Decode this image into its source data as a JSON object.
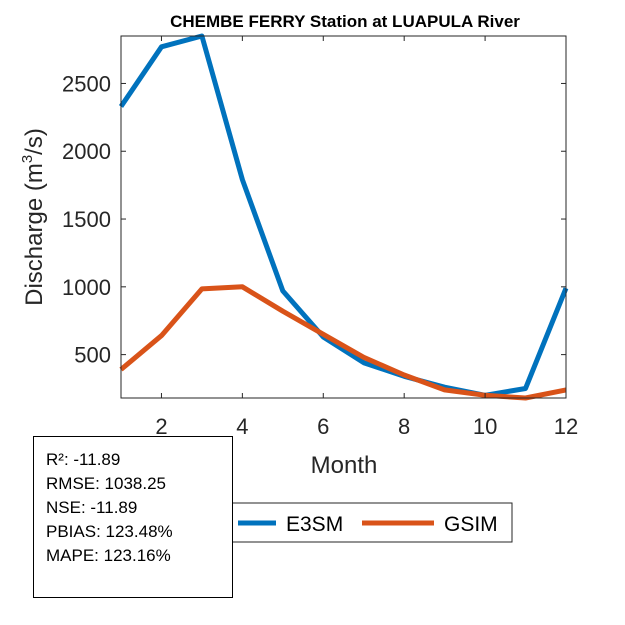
{
  "chart_data": {
    "type": "line",
    "title": "CHEMBE FERRY  Station at  LUAPULA  River",
    "xlabel": "Month",
    "ylabel": "Discharge (m",
    "ylabel_sup": "3",
    "ylabel_tail": "/s)",
    "xlim": [
      1,
      12
    ],
    "ylim": [
      180,
      2850
    ],
    "xticks": [
      "2",
      "4",
      "6",
      "8",
      "10",
      "12"
    ],
    "yticks": [
      "500",
      "1000",
      "1500",
      "2000",
      "2500"
    ],
    "series": [
      {
        "name": "E3SM",
        "color": "#0072BD",
        "x": [
          1,
          2,
          3,
          4,
          5,
          6,
          7,
          8,
          9,
          10,
          11,
          12
        ],
        "values": [
          2330,
          2770,
          2850,
          1790,
          970,
          630,
          440,
          340,
          260,
          200,
          250,
          990
        ]
      },
      {
        "name": "GSIM",
        "color": "#D95319",
        "x": [
          1,
          2,
          3,
          4,
          5,
          6,
          7,
          8,
          9,
          10,
          11,
          12
        ],
        "values": [
          390,
          640,
          985,
          1000,
          820,
          650,
          480,
          350,
          240,
          200,
          180,
          240
        ]
      }
    ]
  },
  "stats": {
    "r2": "R²: -11.89",
    "rmse": "RMSE: 1038.25",
    "nse": "NSE: -11.89",
    "pbias": "PBIAS: 123.48%",
    "mape": "MAPE: 123.16%"
  }
}
